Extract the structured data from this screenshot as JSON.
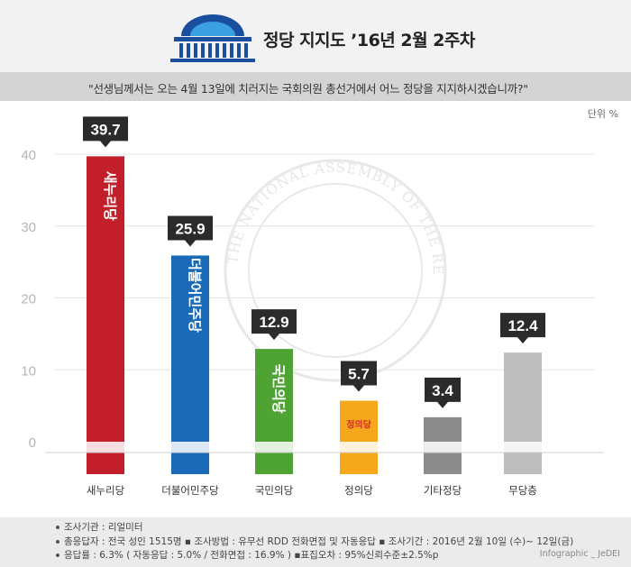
{
  "header": {
    "title": "정당 지지도 ’16년 2월 2주차",
    "question": "\"선생님께서는 오는 4월 13일에 치러지는 국회의원 총선거에서 어느 정당을 지지하시겠습니까?\""
  },
  "unit_label": "단위 %",
  "watermark_text": "THE NATIONAL ASSEMBLY OF THE REPUBLIC OF KOREA",
  "chart_data": {
    "type": "bar",
    "categories": [
      "새누리당",
      "더불어민주당",
      "국민의당",
      "정의당",
      "기타정당",
      "무당층"
    ],
    "values": [
      39.7,
      25.9,
      12.9,
      5.7,
      3.4,
      12.4
    ],
    "value_labels": [
      "39.7",
      "25.9",
      "12.9",
      "5.7",
      "3.4",
      "12.4"
    ],
    "bar_texts": [
      "새누리당",
      "더불어민주당",
      "국민의당",
      "정의당",
      "",
      ""
    ],
    "colors": [
      "#c21f2b",
      "#1a6ab8",
      "#4ea332",
      "#f5a81c",
      "#8c8c8c",
      "#bdbdbd"
    ],
    "yticks": [
      0,
      10,
      20,
      30,
      40
    ],
    "ylim": [
      0,
      42
    ],
    "grid": true,
    "xlabel": "",
    "ylabel": ""
  },
  "footer": {
    "line1": "조사기관 : 리얼미터",
    "line2": "총응답자 : 전국 성인 1515명  ▪ 조사방법 : 유무선 RDD 전화면접 및 자동응답  ▪  조사기간 : 2016년 2월 10일 (수)~ 12일(금)",
    "line3": "응답률 : 6.3% ( 자동응답 : 5.0% / 전화면접 : 16.9% )   ▪표집오차 : 95%신뢰수준±2.5%p",
    "credit": "Infographic _ JeDEI"
  }
}
